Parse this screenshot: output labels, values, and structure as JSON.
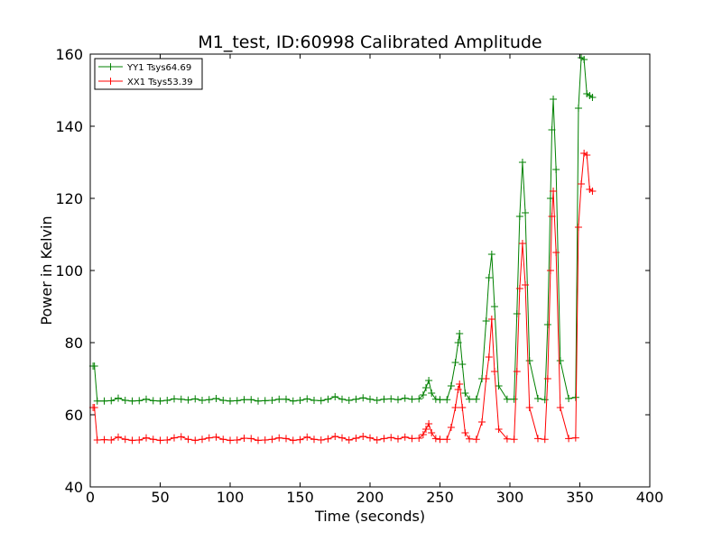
{
  "chart_data": {
    "type": "line",
    "title": "M1_test, ID:60998 Calibrated Amplitude",
    "xlabel": "Time (seconds)",
    "ylabel": "Power in Kelvin",
    "xlim": [
      0,
      400
    ],
    "ylim": [
      40,
      160
    ],
    "xticks": [
      "0",
      "50",
      "100",
      "150",
      "200",
      "250",
      "300",
      "350",
      "400"
    ],
    "yticks": [
      "40",
      "60",
      "80",
      "100",
      "120",
      "140",
      "160"
    ],
    "grid": false,
    "legend_position": "top-left",
    "series": [
      {
        "name": "YY1 Tsys64.69",
        "color": "#008000",
        "marker": "+",
        "x": [
          2,
          3,
          5,
          10,
          15,
          20,
          25,
          30,
          35,
          40,
          45,
          50,
          55,
          60,
          65,
          70,
          75,
          80,
          85,
          90,
          95,
          100,
          105,
          110,
          115,
          120,
          125,
          130,
          135,
          140,
          145,
          150,
          155,
          160,
          165,
          170,
          175,
          180,
          185,
          190,
          195,
          200,
          205,
          210,
          215,
          220,
          225,
          230,
          235,
          238,
          240,
          242,
          244,
          247,
          250,
          255,
          258,
          261,
          263,
          264,
          266,
          268,
          271,
          276,
          280,
          283,
          285,
          287,
          289,
          292,
          298,
          303,
          305,
          307,
          309,
          311,
          314,
          320,
          325,
          327,
          329,
          330,
          331,
          333,
          336,
          342,
          347,
          349,
          351,
          353,
          355,
          357,
          359
        ],
        "y": [
          73.5,
          73.5,
          63.8,
          63.8,
          63.9,
          64.6,
          64.0,
          63.8,
          63.9,
          64.3,
          63.9,
          63.8,
          64.0,
          64.4,
          64.3,
          64.1,
          64.4,
          64.0,
          64.2,
          64.5,
          64.0,
          63.8,
          63.9,
          64.2,
          64.2,
          63.8,
          63.9,
          64.0,
          64.3,
          64.3,
          63.8,
          64.0,
          64.4,
          64.0,
          63.9,
          64.3,
          65.0,
          64.3,
          64.0,
          64.3,
          64.7,
          64.3,
          64.0,
          64.3,
          64.4,
          64.2,
          64.6,
          64.3,
          64.4,
          65.5,
          67.5,
          69.5,
          66.0,
          64.3,
          64.2,
          64.2,
          68.0,
          74.5,
          80.0,
          82.5,
          74.0,
          66.0,
          64.3,
          64.3,
          70.0,
          86.0,
          98.0,
          104.5,
          90.0,
          68.0,
          64.3,
          64.3,
          88.0,
          115.0,
          130.0,
          116.0,
          75.0,
          64.5,
          64.2,
          85.0,
          120.0,
          139.0,
          147.5,
          128.0,
          75.0,
          64.5,
          64.8,
          145.0,
          159.0,
          158.5,
          149.0,
          148.5,
          148.0
        ]
      },
      {
        "name": "XX1 Tsys53.39",
        "color": "#ff0000",
        "marker": "+",
        "x": [
          2,
          3,
          5,
          10,
          15,
          20,
          25,
          30,
          35,
          40,
          45,
          50,
          55,
          60,
          65,
          70,
          75,
          80,
          85,
          90,
          95,
          100,
          105,
          110,
          115,
          120,
          125,
          130,
          135,
          140,
          145,
          150,
          155,
          160,
          165,
          170,
          175,
          180,
          185,
          190,
          195,
          200,
          205,
          210,
          215,
          220,
          225,
          230,
          235,
          238,
          240,
          242,
          244,
          247,
          250,
          255,
          258,
          261,
          263,
          264,
          266,
          268,
          271,
          276,
          280,
          283,
          285,
          287,
          289,
          292,
          298,
          303,
          305,
          307,
          309,
          311,
          314,
          320,
          325,
          327,
          329,
          330,
          331,
          333,
          336,
          342,
          347,
          349,
          351,
          353,
          355,
          357,
          359
        ],
        "y": [
          62.0,
          62.0,
          53.0,
          53.1,
          53.0,
          53.8,
          53.2,
          52.9,
          53.0,
          53.6,
          53.2,
          52.9,
          53.0,
          53.6,
          53.9,
          53.2,
          52.9,
          53.2,
          53.6,
          53.8,
          53.2,
          52.9,
          53.0,
          53.5,
          53.4,
          52.9,
          53.0,
          53.2,
          53.6,
          53.4,
          52.9,
          53.1,
          53.8,
          53.2,
          53.0,
          53.3,
          54.0,
          53.6,
          53.0,
          53.5,
          54.0,
          53.6,
          53.0,
          53.4,
          53.7,
          53.3,
          53.8,
          53.4,
          53.5,
          54.5,
          56.0,
          57.5,
          55.0,
          53.4,
          53.2,
          53.2,
          56.5,
          62.0,
          67.0,
          68.5,
          62.0,
          55.0,
          53.3,
          53.2,
          58.0,
          70.0,
          76.0,
          86.5,
          72.0,
          56.0,
          53.3,
          53.2,
          72.0,
          95.0,
          107.5,
          96.0,
          62.0,
          53.4,
          53.2,
          70.0,
          100.0,
          115.0,
          122.0,
          105.0,
          62.0,
          53.4,
          53.6,
          112.0,
          124.0,
          132.5,
          132.0,
          122.5,
          122.0
        ]
      }
    ]
  }
}
